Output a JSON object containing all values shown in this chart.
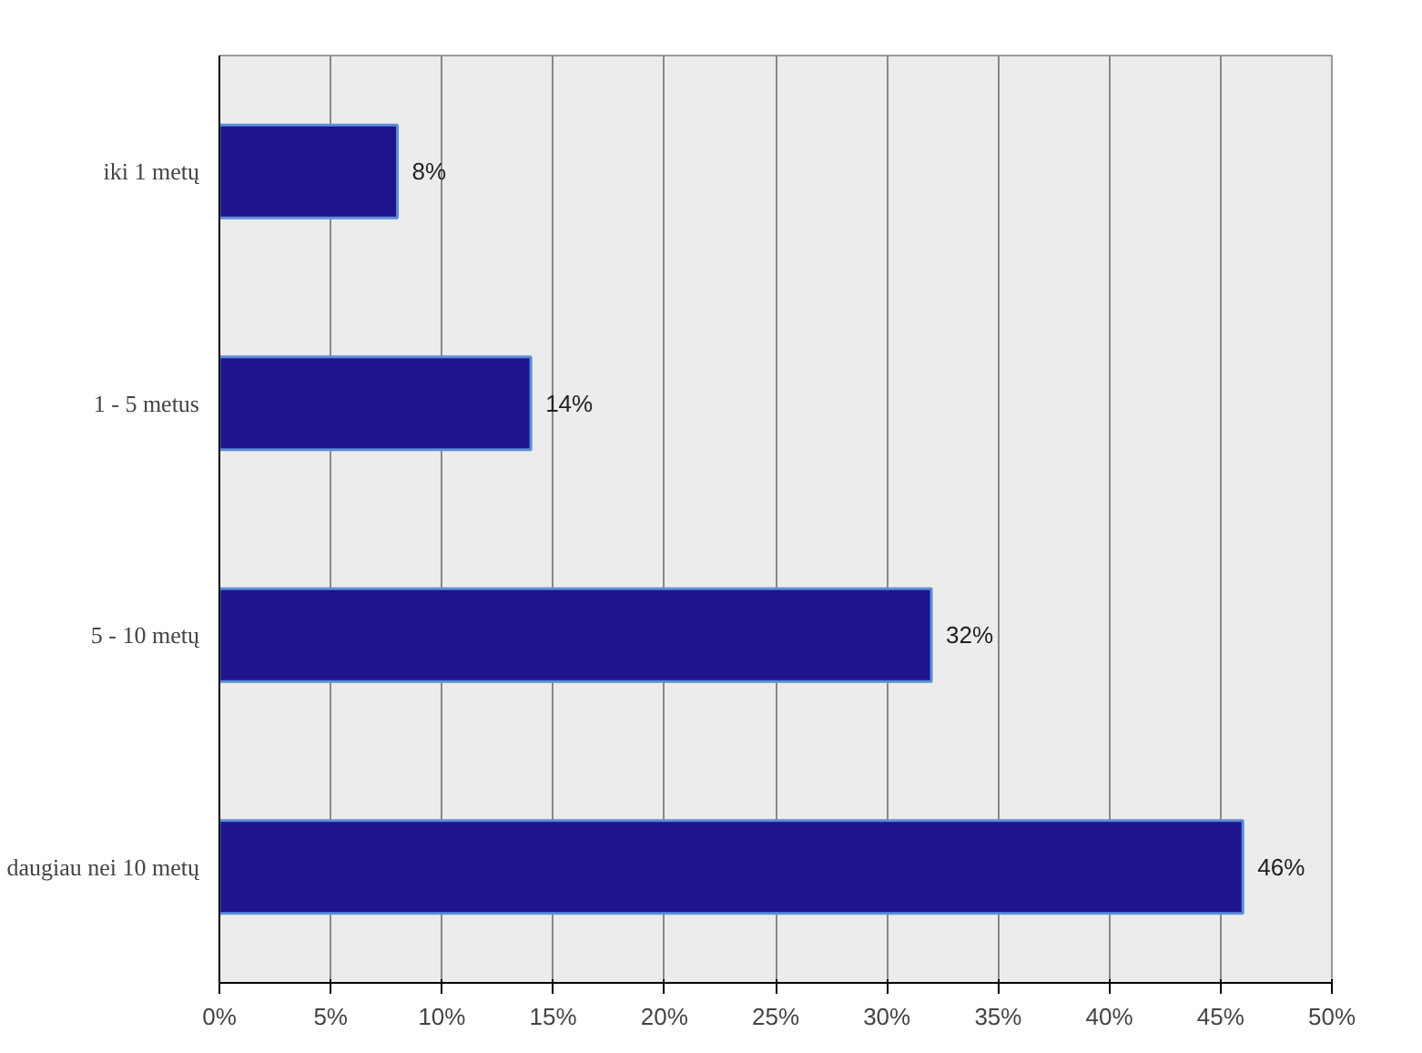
{
  "chart_data": {
    "type": "bar",
    "orientation": "horizontal",
    "categories": [
      "iki 1 metų",
      "1 - 5 metus",
      "5 - 10 metų",
      "daugiau nei 10 metų"
    ],
    "values": [
      8,
      14,
      32,
      46
    ],
    "value_labels": [
      "8%",
      "14%",
      "32%",
      "46%"
    ],
    "color": "#20148c",
    "xlim": [
      0,
      50
    ],
    "xticks": [
      {
        "value": 0,
        "label": "0%"
      },
      {
        "value": 5,
        "label": "5%"
      },
      {
        "value": 10,
        "label": "10%"
      },
      {
        "value": 15,
        "label": "15%"
      },
      {
        "value": 20,
        "label": "20%"
      },
      {
        "value": 25,
        "label": "25%"
      },
      {
        "value": 30,
        "label": "30%"
      },
      {
        "value": 35,
        "label": "35%"
      },
      {
        "value": 40,
        "label": "40%"
      },
      {
        "value": 45,
        "label": "45%"
      },
      {
        "value": 50,
        "label": "50%"
      }
    ],
    "grid": "x"
  }
}
